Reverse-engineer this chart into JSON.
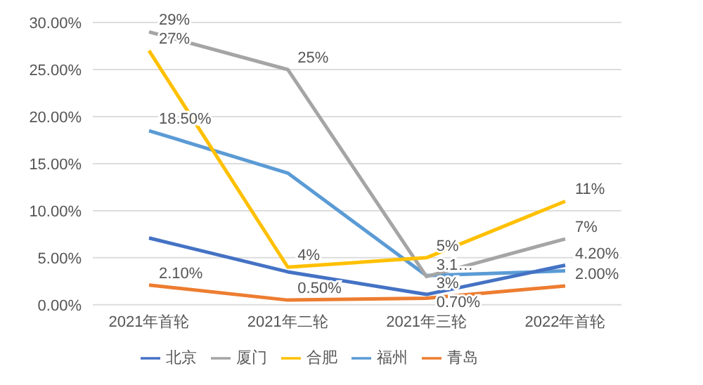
{
  "chart_data": {
    "type": "line",
    "categories": [
      "2021年首轮",
      "2021年二轮",
      "2021年三轮",
      "2022年首轮"
    ],
    "series": [
      {
        "name": "福州",
        "color": "#5b9bd5",
        "values": [
          18.5,
          14,
          3.1,
          3.6
        ],
        "value_labels": [
          "18.50%",
          null,
          "3.1…",
          null
        ]
      },
      {
        "name": "青岛",
        "color": "#ed7d31",
        "values": [
          2.1,
          0.5,
          0.7,
          2.0
        ],
        "value_labels": [
          "2.10%",
          "0.50%",
          "0.70%",
          "2.00%"
        ]
      },
      {
        "name": "厦门",
        "color": "#a5a5a5",
        "values": [
          29,
          25,
          3,
          7
        ],
        "value_labels": [
          "29%",
          "25%",
          "3%",
          "7%"
        ]
      },
      {
        "name": "合肥",
        "color": "#ffc000",
        "values": [
          27,
          4,
          5,
          11
        ],
        "value_labels": [
          "27%",
          "4%",
          "5%",
          "11%"
        ]
      },
      {
        "name": "北京",
        "color": "#4472c4",
        "values": [
          7.1,
          3.5,
          1.1,
          4.2
        ],
        "value_labels": [
          null,
          null,
          null,
          "4.20%"
        ]
      }
    ],
    "ylim": [
      0,
      30
    ],
    "yticks": [
      {
        "value": 0,
        "label": "0.00%"
      },
      {
        "value": 5,
        "label": "5.00%"
      },
      {
        "value": 10,
        "label": "10.00%"
      },
      {
        "value": 15,
        "label": "15.00%"
      },
      {
        "value": 20,
        "label": "20.00%"
      },
      {
        "value": 25,
        "label": "25.00%"
      },
      {
        "value": 30,
        "label": "30.00%"
      }
    ],
    "grid": "y",
    "legend": "bottom",
    "marker": "none",
    "line_style": "solid"
  }
}
